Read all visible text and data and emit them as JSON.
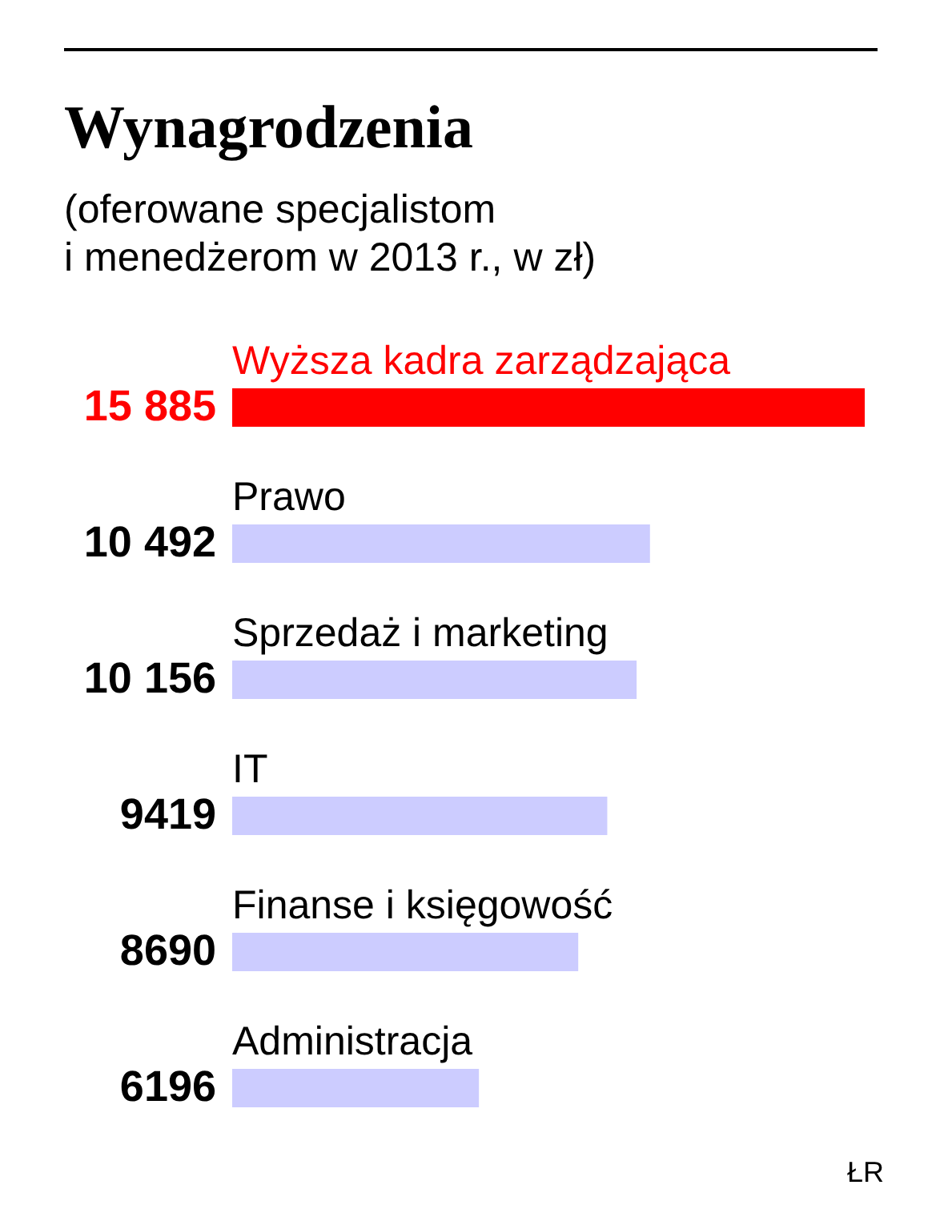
{
  "chart_data": {
    "type": "bar",
    "orientation": "horizontal",
    "title": "Wynagrodzenia",
    "subtitle": "(oferowane specjalistom\ni menedżerom w 2013 r., w zł)",
    "categories": [
      "Wyższa kadra zarządzająca",
      "Prawo",
      "Sprzedaż i marketing",
      "IT",
      "Finanse i księgowość",
      "Administracja"
    ],
    "values": [
      15885,
      10492,
      10156,
      9419,
      8690,
      6196
    ],
    "value_labels": [
      "15 885",
      "10 492",
      "10 156",
      "9419",
      "8690",
      "6196"
    ],
    "colors": [
      "#ff0000",
      "#ccccff",
      "#ccccff",
      "#ccccff",
      "#ccccff",
      "#ccccff"
    ],
    "annotations": [
      "ŁR"
    ]
  }
}
